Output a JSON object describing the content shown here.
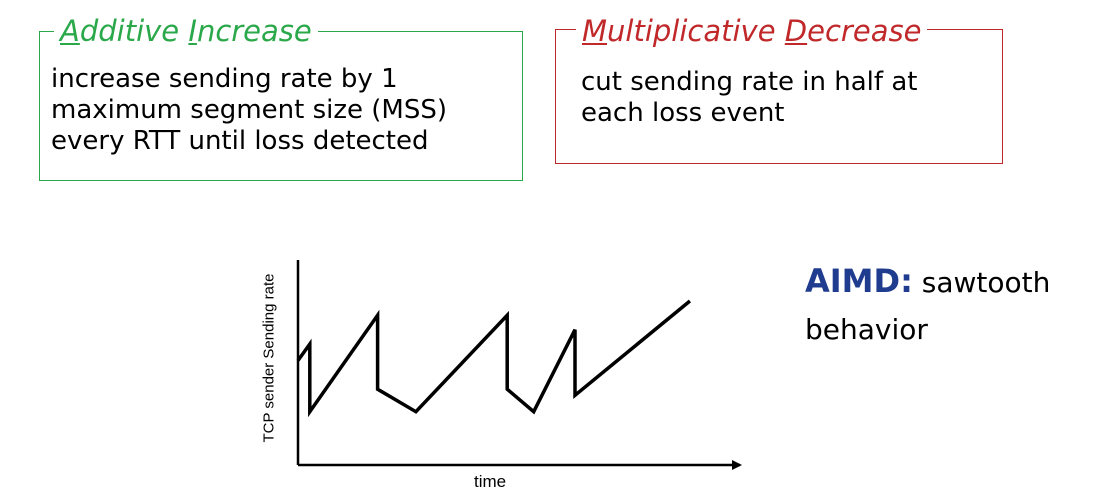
{
  "additive_box": {
    "title_letter_1": "A",
    "title_rest_1": "dditive ",
    "title_letter_2": "I",
    "title_rest_2": "ncrease",
    "body_lines": [
      "increase sending rate by 1",
      "maximum segment size (MSS)",
      "every RTT until loss detected"
    ],
    "border_color": "#2aa84a"
  },
  "multiplicative_box": {
    "title_letter_1": "M",
    "title_rest_1": "ultiplicative ",
    "title_letter_2": "D",
    "title_rest_2": "ecrease",
    "body_lines": [
      "cut sending rate in half at",
      "each loss event"
    ],
    "border_color": "#c0282a"
  },
  "chart": {
    "ylabel": "TCP sender Sending rate",
    "xlabel": "time"
  },
  "aimd": {
    "strong": "AIMD:",
    "rest": " sawtooth",
    "line2": "behavior",
    "strong_color": "#1f3c8f"
  },
  "chart_data": {
    "type": "line",
    "xlabel": "time",
    "ylabel": "TCP sender Sending rate",
    "series": [
      {
        "x": [
          0,
          4,
          5,
          6,
          27,
          28,
          39,
          71,
          72,
          80,
          94,
          99,
          122,
          123,
          133
        ],
        "y": [
          51,
          59,
          24,
          24,
          72,
          36,
          24,
          72,
          36,
          36,
          68,
          34,
          80,
          80,
          80
        ],
        "points": [
          [
            0,
            51
          ],
          [
            4,
            59
          ],
          [
            4,
            26
          ],
          [
            27,
            73
          ],
          [
            27,
            37
          ],
          [
            40,
            26
          ],
          [
            71,
            73
          ],
          [
            71,
            37
          ],
          [
            80,
            26
          ],
          [
            94,
            66
          ],
          [
            94,
            34
          ],
          [
            133,
            80
          ]
        ]
      }
    ],
    "grid": false,
    "legend": "none"
  }
}
